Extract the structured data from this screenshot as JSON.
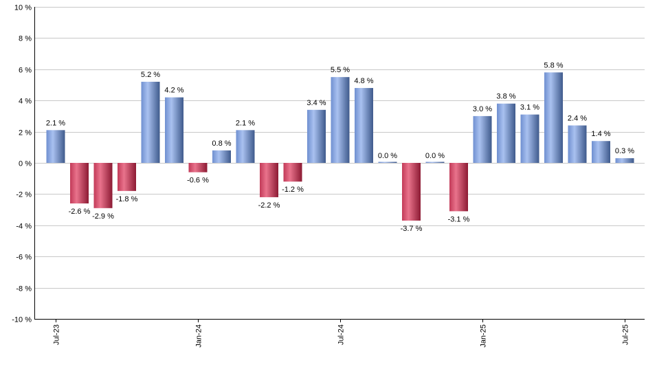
{
  "chart_data": {
    "type": "bar",
    "title": "",
    "xlabel": "",
    "ylabel": "",
    "ylim": [
      -10,
      10
    ],
    "yticks": [
      10,
      8,
      6,
      4,
      2,
      0,
      -2,
      -4,
      -6,
      -8,
      -10
    ],
    "ytick_labels": [
      "10 %",
      "8 %",
      "6 %",
      "4 %",
      "2 %",
      "0 %",
      "-2 %",
      "-4 %",
      "-6 %",
      "-8 %",
      "-10 %"
    ],
    "grid": true,
    "categories": [
      "Jul-23",
      "Aug-23",
      "Sep-23",
      "Oct-23",
      "Nov-23",
      "Dec-23",
      "Jan-24",
      "Feb-24",
      "Mar-24",
      "Apr-24",
      "May-24",
      "Jun-24",
      "Jul-24",
      "Aug-24",
      "Sep-24",
      "Oct-24",
      "Nov-24",
      "Dec-24",
      "Jan-25",
      "Feb-25",
      "Mar-25",
      "Apr-25",
      "May-25",
      "Jun-25",
      "Jul-25"
    ],
    "values": [
      2.1,
      -2.6,
      -2.9,
      -1.8,
      5.2,
      4.2,
      -0.6,
      0.8,
      2.1,
      -2.2,
      -1.2,
      3.4,
      5.5,
      4.8,
      0.0,
      -3.7,
      0.0,
      -3.1,
      3.0,
      3.8,
      3.1,
      5.8,
      2.4,
      1.4,
      0.3
    ],
    "value_labels": [
      "2.1 %",
      "-2.6 %",
      "-2.9 %",
      "-1.8 %",
      "5.2 %",
      "4.2 %",
      "-0.6 %",
      "0.8 %",
      "2.1 %",
      "-2.2 %",
      "-1.2 %",
      "3.4 %",
      "5.5 %",
      "4.8 %",
      "0.0 %",
      "-3.7 %",
      "0.0 %",
      "-3.1 %",
      "3.0 %",
      "3.8 %",
      "3.1 %",
      "5.8 %",
      "2.4 %",
      "1.4 %",
      "0.3 %"
    ],
    "xtick_labels": [
      {
        "index": 0,
        "label": "Jul-23"
      },
      {
        "index": 6,
        "label": "Jan-24"
      },
      {
        "index": 12,
        "label": "Jul-24"
      },
      {
        "index": 18,
        "label": "Jan-25"
      },
      {
        "index": 24,
        "label": "Jul-25"
      }
    ],
    "colors": {
      "positive_light": "#a9c1f0",
      "positive_dark": "#3f5a8c",
      "negative_light": "#e9738c",
      "negative_dark": "#8c1a33",
      "grid": "#c8c8c8",
      "axis": "#000000"
    }
  }
}
